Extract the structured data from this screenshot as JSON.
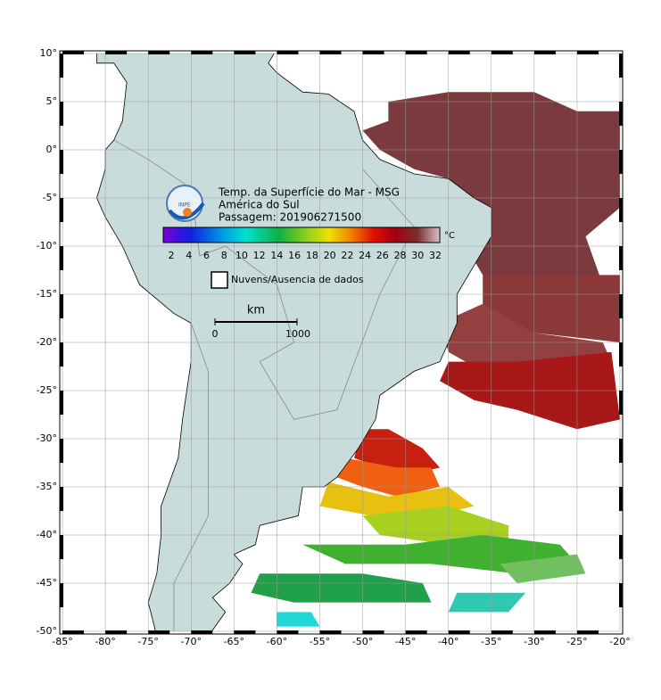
{
  "header": {
    "title": "Temp. da Superfície do Mar - MSG",
    "region": "América do Sul",
    "pass": "Passagem: 201906271500",
    "logo": "INPE"
  },
  "colorbar": {
    "ticks": [
      "2",
      "4",
      "6",
      "8",
      "10",
      "12",
      "14",
      "16",
      "18",
      "20",
      "22",
      "24",
      "26",
      "28",
      "30",
      "32"
    ],
    "unit": "°C"
  },
  "legend": {
    "label": "Nuvens/Ausencia de dados"
  },
  "scale": {
    "unit": "km",
    "start": "0",
    "end": "1000"
  },
  "axes": {
    "lat_labels": [
      "10°",
      "5°",
      "0°",
      "-5°",
      "-10°",
      "-15°",
      "-20°",
      "-25°",
      "-30°",
      "-35°",
      "-40°",
      "-45°",
      "-50°"
    ],
    "lon_labels": [
      "-85°",
      "-80°",
      "-75°",
      "-70°",
      "-65°",
      "-60°",
      "-55°",
      "-50°",
      "-45°",
      "-40°",
      "-35°",
      "-30°",
      "-25°",
      "-20°"
    ]
  }
}
